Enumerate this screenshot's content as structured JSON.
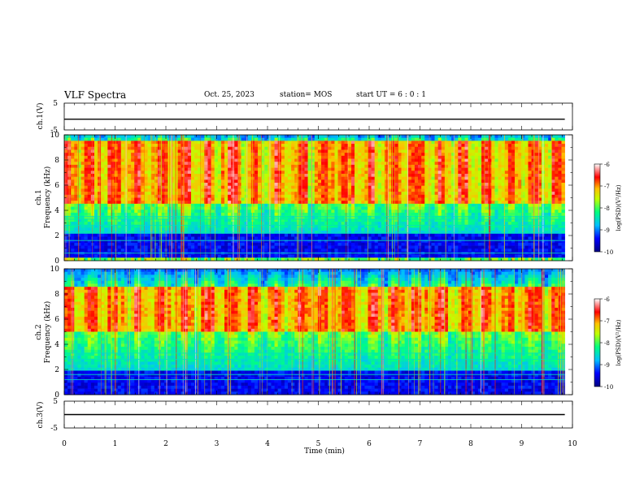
{
  "header": {
    "title": "VLF Spectra",
    "date": "Oct. 25, 2023",
    "station": "station= MOS",
    "start": "start UT =  6 : 0 : 1"
  },
  "chart_data": [
    {
      "type": "line",
      "panel": "ch1-waveform",
      "ylabel": "ch.1(V)",
      "ylim": [
        -5,
        5
      ],
      "y_ticklabels": [
        "5",
        "-5"
      ],
      "series": [
        {
          "x": [
            0,
            10
          ],
          "y": [
            -1,
            -1
          ]
        }
      ]
    },
    {
      "type": "heatmap",
      "panel": "ch1-spectrogram",
      "ylabel": "ch.1\nFrequency (kHz)",
      "xlim": [
        0,
        9.85
      ],
      "ylim": [
        0,
        10
      ],
      "y_ticklabels": [
        "0",
        "2",
        "4",
        "6",
        "8",
        "10"
      ],
      "colorbar": {
        "label": "log(PSD)(V²/Hz)",
        "range": [
          -10,
          -6
        ],
        "ticklabels": [
          "-6",
          "-7",
          "-8",
          "-9",
          "-10"
        ]
      },
      "intense_band_khz": [
        4.5,
        9.5
      ],
      "quiet_band_khz": [
        0.3,
        2.2
      ],
      "interference_lines_khz": [
        3.3,
        3.5,
        2.8,
        2.2,
        1.6,
        0.6
      ]
    },
    {
      "type": "heatmap",
      "panel": "ch2-spectrogram",
      "ylabel": "ch.2\nFrequency (kHz)",
      "xlim": [
        0,
        9.85
      ],
      "ylim": [
        0,
        10
      ],
      "y_ticklabels": [
        "0",
        "2",
        "4",
        "6",
        "8",
        "10"
      ],
      "colorbar": {
        "label": "log(PSD)(V²/Hz)",
        "range": [
          -10,
          -6
        ],
        "ticklabels": [
          "-6",
          "-7",
          "-8",
          "-9",
          "-10"
        ]
      },
      "intense_band_khz": [
        5,
        8.5
      ],
      "quiet_band_khz": [
        0,
        2
      ],
      "interference_lines_khz": [
        3.3,
        2.8,
        2.0,
        1.6,
        1.2
      ]
    },
    {
      "type": "line",
      "panel": "ch3-waveform",
      "ylabel": "ch.3(V)",
      "xlabel": "Time (min)",
      "ylim": [
        -5,
        5
      ],
      "xlim": [
        0,
        10
      ],
      "x_ticklabels": [
        "0",
        "1",
        "2",
        "3",
        "4",
        "5",
        "6",
        "7",
        "8",
        "9",
        "10"
      ],
      "y_ticklabels": [
        "5",
        "-5"
      ],
      "series": [
        {
          "x": [
            0,
            10
          ],
          "y": [
            0,
            0
          ]
        }
      ]
    }
  ],
  "colormap": [
    "#000080",
    "#0000ff",
    "#0080ff",
    "#00ffff",
    "#00ff80",
    "#80ff00",
    "#ffff00",
    "#ff8000",
    "#ff0000",
    "#ffffff"
  ]
}
